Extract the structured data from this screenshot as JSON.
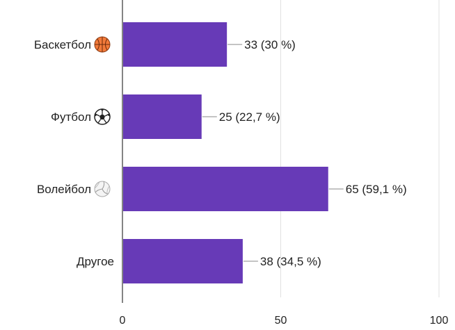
{
  "chart_data": {
    "type": "bar",
    "orientation": "horizontal",
    "title": "",
    "xlabel": "",
    "ylabel": "",
    "categories": [
      {
        "label": "Баскетбол",
        "icon": "basketball-icon"
      },
      {
        "label": "Футбол",
        "icon": "soccer-ball-icon"
      },
      {
        "label": "Волейбол",
        "icon": "volleyball-icon"
      },
      {
        "label": "Другое",
        "icon": ""
      }
    ],
    "values": [
      33,
      25,
      65,
      38
    ],
    "data_labels": [
      "33 (30 %)",
      "25 (22,7 %)",
      "65 (59,1 %)",
      "38 (34,5 %)"
    ],
    "xlim": [
      0,
      100
    ],
    "xticks": [
      0,
      50,
      100
    ],
    "xtick_labels": [
      "0",
      "50",
      "100"
    ],
    "grid": true,
    "legend": "none",
    "colors": {
      "bar": "#673ab7",
      "gridline": "#e0e0e0",
      "axis": "#333333",
      "text": "#222222",
      "leader": "#888888"
    }
  }
}
